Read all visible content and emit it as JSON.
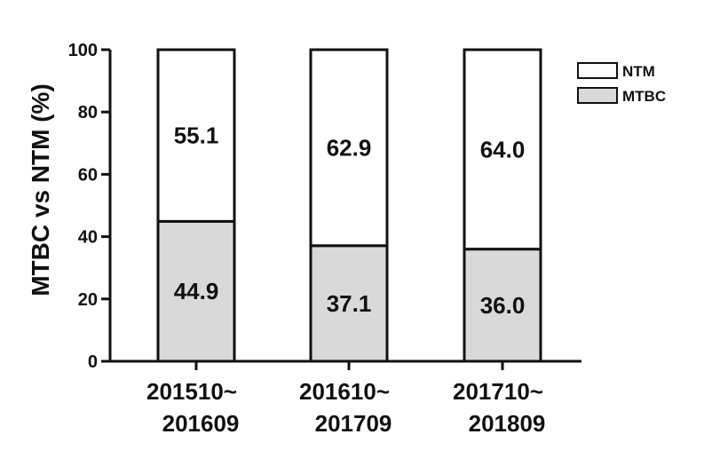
{
  "chart_data": {
    "type": "bar",
    "stacked": true,
    "percent": true,
    "categories": [
      [
        "201510~",
        "201609"
      ],
      [
        "201610~",
        "201709"
      ],
      [
        "201710~",
        "201809"
      ]
    ],
    "series": [
      {
        "name": "MTBC",
        "values": [
          44.9,
          37.1,
          36.0
        ],
        "labels": [
          "44.9",
          "37.1",
          "36.0"
        ],
        "color": "#d9d9d9"
      },
      {
        "name": "NTM",
        "values": [
          55.1,
          62.9,
          64.0
        ],
        "labels": [
          "55.1",
          "62.9",
          "64.0"
        ],
        "color": "#ffffff"
      }
    ],
    "ylabel": "MTBC vs NTM (%)",
    "xlabel": "",
    "ylim": [
      0,
      100
    ],
    "yticks": [
      0,
      20,
      40,
      60,
      80,
      100
    ],
    "legend": {
      "placement": "top-right",
      "order": [
        "NTM",
        "MTBC"
      ]
    },
    "grid": false
  }
}
